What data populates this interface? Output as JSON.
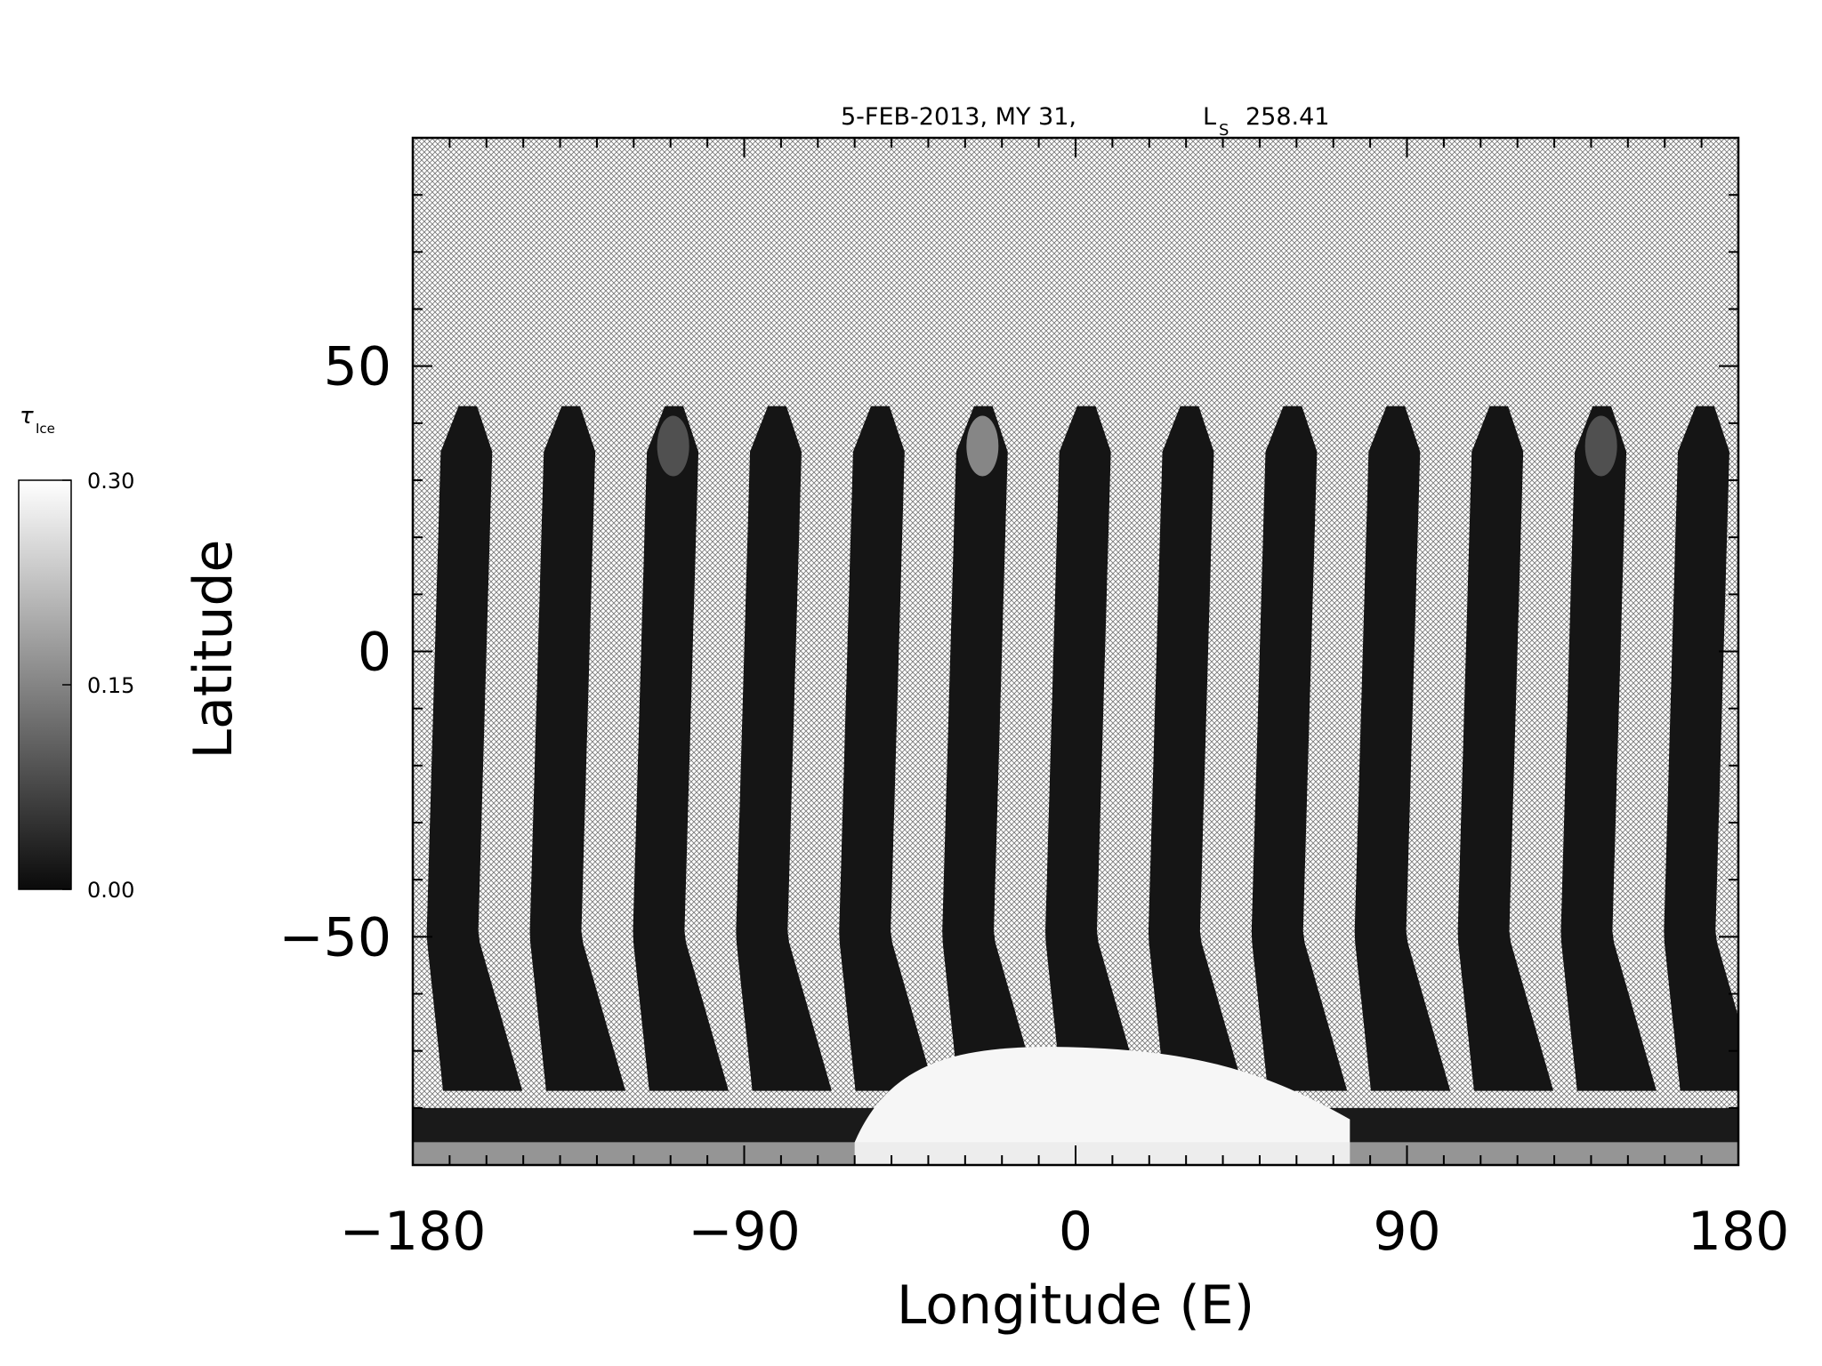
{
  "chart_data": {
    "type": "heatmap",
    "title": {
      "date": "5-FEB-2013, MY 31,",
      "ls_letter": "L",
      "ls_sub": "S",
      "ls_value": "258.41"
    },
    "xlabel": "Longitude (E)",
    "ylabel": "Latitude",
    "xlim": [
      -180,
      180
    ],
    "ylim": [
      -90,
      90
    ],
    "xticks": [
      -180,
      -90,
      0,
      90,
      180
    ],
    "xtick_labels": [
      "−180",
      "−90",
      "0",
      "90",
      "180"
    ],
    "yticks": [
      50,
      0,
      -50
    ],
    "ytick_labels": [
      "50",
      "0",
      "−50"
    ],
    "x_minor_step": 10,
    "y_minor_step": 10,
    "grid": false,
    "missing_data_pattern": "cross-hatch",
    "colorbar": {
      "label_symbol": "τ",
      "label_sub": "Ice",
      "min": 0.0,
      "max": 0.3,
      "ticks": [
        0.0,
        0.15,
        0.3
      ],
      "tick_labels": [
        "0.00",
        "0.15",
        "0.30"
      ],
      "colormap": "grayscale",
      "low_color": "#0a0a0a",
      "high_color": "#ffffff",
      "placement": "left"
    },
    "swath_center_longitudes_at_equator": [
      -167,
      -139,
      -111,
      -83,
      -55,
      -27,
      1,
      29,
      57,
      85,
      113,
      141,
      169
    ],
    "swath_lat_range": [
      -78,
      43
    ],
    "polar_cap": {
      "lat_max": -70,
      "lon_range": [
        -60,
        60
      ],
      "value": 0.3
    }
  }
}
